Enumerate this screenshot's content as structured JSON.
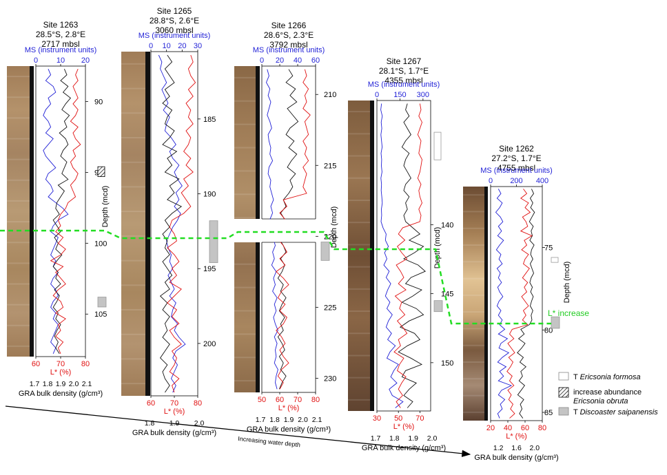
{
  "figure": {
    "arrow_label": "Increasing water depth",
    "linx_label": "L* increase",
    "colors": {
      "ms": "#1f1fd6",
      "lstar": "#e01010",
      "gra": "#111111",
      "marker": "#22dd22"
    }
  },
  "legend": {
    "items": [
      {
        "kind": "open-box",
        "prefix": "T",
        "taxon": "Ericsonia formosa"
      },
      {
        "kind": "hatched-box",
        "prefix": "increase abundance",
        "taxon": "Ericsonia obruta"
      },
      {
        "kind": "gray-box",
        "prefix": "T",
        "taxon": "Discoaster saipanensis"
      }
    ]
  },
  "chart_data": [
    {
      "type": "line",
      "site": "Site 1263",
      "coords": "28.5°S, 2.8°E",
      "water_depth": "2717 mbsl",
      "ms_label": "MS (instrument units)",
      "ms_ticks": [
        "0",
        "10",
        "20"
      ],
      "ms_lim": [
        0,
        20
      ],
      "lstar_label": "L* (%)",
      "lstar_ticks": [
        "60",
        "70",
        "80"
      ],
      "lstar_lim": [
        60,
        80
      ],
      "gra_label": "GRA bulk density (g/cm³)",
      "gra_ticks": [
        "1.7",
        "1.8",
        "1.9",
        "2.0",
        "2.1"
      ],
      "gra_lim": [
        1.7,
        2.1
      ],
      "depth_label": "Depth (mcd)",
      "depth_ticks": [
        "90",
        "95",
        "100",
        "105"
      ],
      "depth_lim": [
        87.5,
        108
      ],
      "l_star_increase_depth": 98.5,
      "ms_values": [
        5,
        6,
        4,
        7,
        8,
        5,
        6,
        4,
        3,
        5,
        6,
        4,
        7,
        5,
        3,
        4,
        6,
        8,
        5,
        4,
        6,
        7,
        5,
        8,
        11,
        13,
        9,
        7,
        6,
        9,
        8,
        7,
        6,
        8,
        7,
        9,
        7,
        6,
        8,
        9,
        7,
        6,
        8,
        7,
        9,
        8,
        7,
        6,
        8,
        7
      ],
      "lstar_values": [
        77,
        76,
        77,
        75,
        76,
        77,
        75,
        77,
        76,
        74,
        77,
        75,
        76,
        78,
        75,
        76,
        74,
        75,
        77,
        76,
        74,
        75,
        76,
        73,
        72,
        70,
        69,
        70,
        68,
        71,
        69,
        72,
        70,
        66,
        71,
        68,
        70,
        72,
        69,
        67,
        70,
        71,
        68,
        72,
        69,
        70,
        68,
        71,
        69,
        70
      ],
      "gra_values": [
        1.93,
        1.95,
        1.9,
        1.96,
        1.92,
        1.98,
        1.94,
        1.91,
        1.97,
        1.93,
        1.95,
        1.89,
        1.94,
        1.96,
        1.92,
        1.9,
        1.95,
        1.93,
        1.91,
        1.96,
        1.88,
        1.93,
        1.9,
        1.87,
        1.86,
        1.89,
        1.84,
        1.87,
        1.9,
        1.85,
        1.88,
        1.86,
        1.91,
        1.87,
        1.84,
        1.88,
        1.86,
        1.9,
        1.85,
        1.89,
        1.87,
        1.84,
        1.88,
        1.86,
        1.9,
        1.87,
        1.85,
        1.88,
        1.86,
        1.89
      ],
      "marker_boxes": [
        {
          "kind": "hatched-box",
          "from": 94.6,
          "to": 95.3
        },
        {
          "kind": "gray-box",
          "from": 103.8,
          "to": 104.5
        }
      ]
    },
    {
      "type": "line",
      "site": "Site 1265",
      "coords": "28.8°S, 2.6°E",
      "water_depth": "3060 mbsl",
      "ms_label": "MS (instrument units)",
      "ms_ticks": [
        "0",
        "10",
        "20",
        "30"
      ],
      "ms_lim": [
        0,
        30
      ],
      "lstar_label": "L* (%)",
      "lstar_ticks": [
        "60",
        "70",
        "80"
      ],
      "lstar_lim": [
        60,
        80
      ],
      "gra_label": "GRA bulk density (g/cm³)",
      "gra_ticks": [
        "1.8",
        "1.9",
        "2.0"
      ],
      "gra_lim": [
        1.8,
        2.0
      ],
      "depth_label": "Depth (mcd)",
      "depth_ticks": [
        "185",
        "190",
        "195",
        "200"
      ],
      "depth_lim": [
        180.5,
        203.5
      ],
      "l_star_increase_depth": 191.7,
      "ms_values": [
        5,
        7,
        6,
        8,
        10,
        7,
        9,
        11,
        8,
        12,
        10,
        9,
        13,
        16,
        12,
        14,
        18,
        15,
        17,
        20,
        16,
        18,
        15,
        19,
        17,
        14,
        12,
        10,
        11,
        13,
        12,
        14,
        11,
        13,
        15,
        12,
        16,
        14,
        13,
        17,
        15,
        18,
        22,
        16,
        14,
        17,
        15,
        13,
        16,
        14
      ],
      "lstar_values": [
        77,
        78,
        76,
        77,
        79,
        76,
        78,
        75,
        77,
        76,
        78,
        75,
        77,
        76,
        74,
        77,
        75,
        78,
        74,
        76,
        73,
        75,
        77,
        74,
        69,
        68,
        70,
        71,
        67,
        70,
        72,
        69,
        71,
        68,
        73,
        70,
        67,
        71,
        69,
        72,
        68,
        70,
        73,
        69,
        71,
        70,
        68,
        72,
        69,
        70
      ],
      "gra_values": [
        1.87,
        1.89,
        1.86,
        1.88,
        1.9,
        1.86,
        1.88,
        1.85,
        1.89,
        1.87,
        1.86,
        1.9,
        1.88,
        1.85,
        1.91,
        1.87,
        1.89,
        1.86,
        1.92,
        1.88,
        1.9,
        1.87,
        1.93,
        1.89,
        1.86,
        1.88,
        1.85,
        1.87,
        1.86,
        1.88,
        1.85,
        1.87,
        1.89,
        1.86,
        1.88,
        1.84,
        1.87,
        1.85,
        1.88,
        1.86,
        1.87,
        1.85,
        1.88,
        1.86,
        1.84,
        1.87,
        1.85,
        1.86,
        1.88,
        1.86
      ],
      "marker_boxes": [
        {
          "kind": "gray-box",
          "from": 191.8,
          "to": 194.6
        }
      ]
    },
    {
      "type": "line",
      "site": "Site 1266",
      "coords": "28.6°S, 2.3°E",
      "water_depth": "3792 mbsl",
      "ms_label": "MS (instrument units)",
      "ms_ticks": [
        "0",
        "20",
        "40",
        "60"
      ],
      "ms_lim": [
        0,
        60
      ],
      "lstar_label": "L* (%)",
      "lstar_ticks": [
        "50",
        "60",
        "70",
        "80"
      ],
      "lstar_lim": [
        50,
        80
      ],
      "gra_label": "GRA bulk density (g/cm³)",
      "gra_ticks": [
        "1.7",
        "1.8",
        "1.9",
        "2.0",
        "2.1"
      ],
      "gra_lim": [
        1.7,
        2.1
      ],
      "depth_label": "Depth (mcd)",
      "depth_ticks": [
        "210",
        "215",
        "220",
        "225",
        "230"
      ],
      "depth_lim": [
        208,
        231
      ],
      "l_star_increase_depth": 219.9,
      "ms_values": [
        6,
        8,
        5,
        9,
        7,
        10,
        8,
        6,
        9,
        11,
        7,
        8,
        10,
        9,
        12,
        8,
        7,
        10,
        9,
        11,
        13,
        10,
        12,
        9,
        14,
        11,
        13,
        15,
        12,
        14,
        11,
        16,
        13,
        15,
        12,
        17,
        14,
        16,
        13,
        15,
        18,
        14,
        17,
        15,
        16,
        14,
        18,
        16,
        15,
        17
      ],
      "lstar_values": [
        74,
        75,
        73,
        76,
        74,
        75,
        73,
        77,
        74,
        75,
        76,
        73,
        75,
        74,
        76,
        73,
        75,
        74,
        73,
        75,
        62,
        64,
        60,
        63,
        61,
        65,
        59,
        62,
        64,
        60,
        63,
        58,
        62,
        65,
        61,
        59,
        63,
        60,
        64,
        62,
        58,
        61,
        63,
        60,
        62,
        65,
        61,
        59,
        62,
        60
      ],
      "gra_values": [
        1.9,
        1.93,
        1.88,
        1.95,
        1.91,
        1.96,
        1.89,
        1.93,
        1.97,
        1.91,
        1.88,
        1.94,
        1.9,
        1.96,
        1.92,
        1.89,
        1.95,
        1.91,
        1.93,
        1.9,
        1.86,
        1.88,
        1.84,
        1.87,
        1.85,
        1.89,
        1.83,
        1.86,
        1.88,
        1.84,
        1.87,
        1.85,
        1.82,
        1.86,
        1.84,
        1.88,
        1.85,
        1.83,
        1.87,
        1.84,
        1.86,
        1.82,
        1.85,
        1.87,
        1.83,
        1.86,
        1.84,
        1.88,
        1.85,
        1.83
      ],
      "marker_boxes": [
        {
          "kind": "gray-box",
          "from": 220.4,
          "to": 221.7
        }
      ]
    },
    {
      "type": "line",
      "site": "Site 1267",
      "coords": "28.1°S, 1.7°E",
      "water_depth": "4355 mbsl",
      "ms_label": "MS (instrument units)",
      "ms_ticks": [
        "0",
        "150",
        "300"
      ],
      "ms_lim": [
        0,
        350
      ],
      "lstar_label": "L* (%)",
      "lstar_ticks": [
        "30",
        "50",
        "70"
      ],
      "lstar_lim": [
        30,
        80
      ],
      "gra_label": "GRA bulk density (g/cm³)",
      "gra_ticks": [
        "1.7",
        "1.8",
        "1.9",
        "2.0"
      ],
      "gra_lim": [
        1.7,
        2.0
      ],
      "depth_label": "Depth (mcd)",
      "depth_ticks": [
        "140",
        "145",
        "150"
      ],
      "depth_lim": [
        131,
        153.5
      ],
      "l_star_increase_depth": 143.7,
      "ms_values": [
        30,
        25,
        35,
        28,
        32,
        26,
        30,
        34,
        27,
        31,
        29,
        33,
        26,
        30,
        28,
        32,
        35,
        29,
        31,
        27,
        40,
        60,
        55,
        75,
        50,
        65,
        45,
        80,
        60,
        90,
        70,
        55,
        85,
        65,
        100,
        75,
        60,
        95,
        70,
        120,
        85,
        65,
        140,
        110,
        90,
        130,
        80,
        100,
        170,
        120
      ],
      "lstar_values": [
        70,
        71,
        69,
        72,
        70,
        68,
        71,
        70,
        69,
        72,
        71,
        70,
        68,
        71,
        69,
        70,
        72,
        69,
        71,
        70,
        54,
        50,
        56,
        49,
        53,
        58,
        48,
        52,
        55,
        50,
        57,
        47,
        53,
        51,
        56,
        49,
        54,
        58,
        50,
        52,
        46,
        55,
        51,
        49,
        57,
        53,
        50,
        54,
        48,
        52
      ],
      "gra_values": [
        1.87,
        1.86,
        1.88,
        1.85,
        1.87,
        1.89,
        1.86,
        1.84,
        1.88,
        1.86,
        1.85,
        1.87,
        1.89,
        1.86,
        1.85,
        1.88,
        1.86,
        1.87,
        1.85,
        1.86,
        1.9,
        1.94,
        1.88,
        1.96,
        1.91,
        1.85,
        1.93,
        1.97,
        1.89,
        1.86,
        1.95,
        1.9,
        1.84,
        1.92,
        1.96,
        1.88,
        1.83,
        1.91,
        1.94,
        1.87,
        1.82,
        1.89,
        1.95,
        1.86,
        1.84,
        1.92,
        1.88,
        1.85,
        1.9,
        1.87
      ],
      "marker_boxes": [
        {
          "kind": "open-box",
          "from": 133.3,
          "to": 135.3
        },
        {
          "kind": "gray-box",
          "from": 145.5,
          "to": 146.3
        }
      ]
    },
    {
      "type": "line",
      "site": "Site 1262",
      "coords": "27.2°S, 1.7°E",
      "water_depth": "4755 mbsl",
      "ms_label": "MS (instrument units)",
      "ms_ticks": [
        "0",
        "200",
        "400"
      ],
      "ms_lim": [
        0,
        400
      ],
      "lstar_label": "L* (%)",
      "lstar_ticks": [
        "20",
        "40",
        "60",
        "80"
      ],
      "lstar_lim": [
        20,
        80
      ],
      "gra_label": "GRA bulk density (g/cm³)",
      "gra_ticks": [
        "1.2",
        "1.6",
        "2.0"
      ],
      "gra_lim": [
        1.0,
        2.2
      ],
      "depth_label": "Depth (mcd)",
      "depth_ticks": [
        "75",
        "80",
        "85"
      ],
      "depth_lim": [
        71.3,
        85.5
      ],
      "l_star_increase_depth": 79.3,
      "ms_values": [
        60,
        80,
        50,
        90,
        70,
        40,
        75,
        95,
        60,
        85,
        55,
        100,
        70,
        45,
        80,
        65,
        90,
        50,
        75,
        60,
        85,
        55,
        70,
        95,
        65,
        50,
        80,
        60,
        90,
        70,
        110,
        60,
        130,
        80,
        65,
        140,
        90,
        55,
        120,
        70,
        100,
        60,
        160,
        85,
        60,
        110,
        75,
        90,
        55,
        70
      ],
      "lstar_values": [
        58,
        62,
        55,
        64,
        60,
        66,
        57,
        61,
        63,
        55,
        68,
        59,
        62,
        56,
        64,
        60,
        58,
        65,
        61,
        57,
        63,
        59,
        62,
        56,
        60,
        64,
        58,
        61,
        57,
        63,
        45,
        42,
        47,
        40,
        44,
        48,
        41,
        46,
        43,
        39,
        45,
        42,
        47,
        40,
        44,
        41,
        46,
        43,
        48,
        42
      ],
      "gra_values": [
        1.95,
        2.0,
        1.92,
        1.98,
        1.93,
        2.02,
        1.96,
        1.9,
        1.99,
        1.94,
        1.97,
        1.91,
        2.01,
        1.95,
        1.93,
        1.98,
        1.92,
        1.96,
        2.0,
        1.94,
        1.91,
        1.97,
        1.93,
        1.99,
        1.95,
        1.92,
        1.98,
        1.94,
        1.96,
        1.9,
        1.7,
        1.78,
        1.65,
        1.8,
        1.72,
        1.62,
        1.76,
        1.68,
        1.82,
        1.7,
        1.74,
        1.66,
        1.79,
        1.71,
        1.63,
        1.77,
        1.69,
        1.73,
        1.67,
        1.75
      ],
      "marker_boxes": [
        {
          "kind": "open-box",
          "from": 75.6,
          "to": 75.9
        },
        {
          "kind": "gray-box",
          "from": 79.2,
          "to": 79.9
        }
      ]
    }
  ]
}
